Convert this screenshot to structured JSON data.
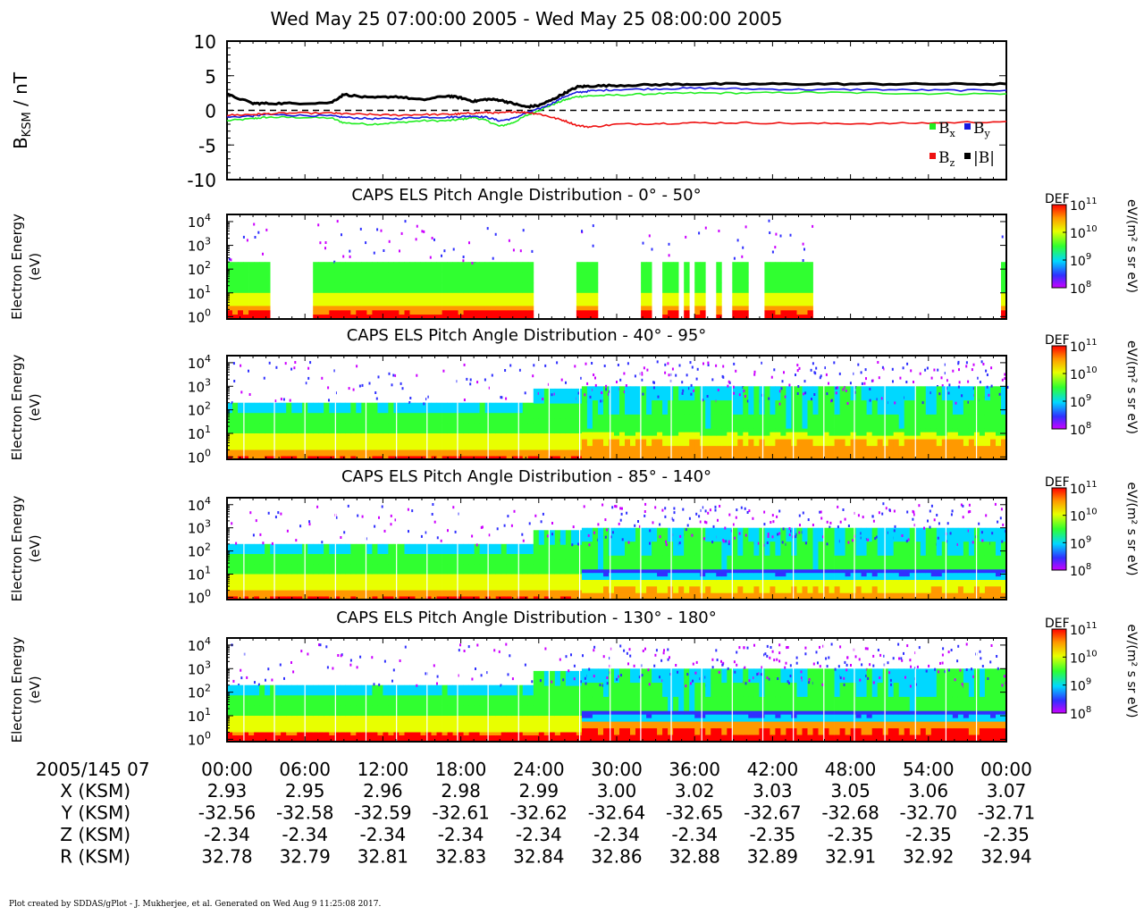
{
  "title": "Wed May 25 07:00:00 2005 - Wed May 25 08:00:00 2005",
  "footer": "Plot created by SDDAS/gPlot - J. Mukherjee, et al.  Generated on Wed Aug 9 11:25:08 2017.",
  "colors": {
    "bx": "#22ee22",
    "by": "#1818e0",
    "bz": "#ee1111",
    "btot": "#000000"
  },
  "chart_data": [
    {
      "type": "line",
      "panel": "magnetic-field",
      "ylabel_main": "B",
      "ylabel_sub": "KSM",
      "ylabel_unit": " / nT",
      "ylim": [
        -10,
        10
      ],
      "yticks": [
        "10",
        "5",
        "0",
        "-5",
        "-10"
      ],
      "ytick_values": [
        10,
        5,
        0,
        -5,
        -10
      ],
      "x_minutes": [
        0,
        2,
        3,
        5,
        8,
        9,
        11,
        13,
        15,
        17,
        18,
        19,
        20,
        21,
        22,
        23,
        24,
        25,
        26,
        27,
        28,
        30,
        33,
        36,
        40,
        45,
        50,
        55,
        60
      ],
      "series": [
        {
          "name": "B",
          "sub": "x",
          "color": "#22ee22",
          "values": [
            -1.5,
            -1.2,
            -1.0,
            -1.0,
            -1.1,
            -1.8,
            -2.0,
            -1.8,
            -1.5,
            -1.5,
            -1.3,
            -1.0,
            -1.5,
            -2.3,
            -1.8,
            -0.8,
            0.0,
            0.8,
            1.5,
            2.0,
            2.1,
            2.2,
            2.4,
            2.5,
            2.5,
            2.6,
            2.5,
            2.4,
            2.4
          ]
        },
        {
          "name": "B",
          "sub": "y",
          "color": "#1818e0",
          "values": [
            -1.0,
            -0.8,
            -0.6,
            -0.7,
            -0.8,
            -1.0,
            -1.2,
            -1.2,
            -1.0,
            -1.0,
            -0.9,
            -0.8,
            -1.0,
            -1.5,
            -1.2,
            -0.4,
            0.2,
            1.0,
            2.0,
            2.6,
            2.8,
            3.0,
            3.1,
            3.2,
            3.1,
            3.0,
            3.0,
            2.9,
            2.9
          ]
        },
        {
          "name": "B",
          "sub": "z",
          "color": "#ee1111",
          "values": [
            -0.7,
            -0.6,
            -0.5,
            -0.4,
            -0.4,
            -0.5,
            -0.6,
            -0.7,
            -0.6,
            -0.6,
            -0.5,
            -0.4,
            -0.3,
            -0.4,
            -0.2,
            -0.3,
            -0.5,
            -1.0,
            -1.5,
            -2.2,
            -2.4,
            -2.0,
            -1.9,
            -1.8,
            -1.8,
            -1.9,
            -1.9,
            -1.8,
            -1.6
          ]
        },
        {
          "name": "|B|",
          "sub": "",
          "color": "#000000",
          "values": [
            2.3,
            1.0,
            1.0,
            1.0,
            1.1,
            2.3,
            1.8,
            2.0,
            1.5,
            2.1,
            1.8,
            1.3,
            1.6,
            1.5,
            1.0,
            0.5,
            0.7,
            1.5,
            2.5,
            3.4,
            3.5,
            3.6,
            3.7,
            3.8,
            3.8,
            3.8,
            3.8,
            3.8,
            3.8
          ]
        }
      ]
    },
    {
      "type": "heatmap",
      "panel": "pad-0-50",
      "title": "CAPS ELS Pitch Angle Distribution - 0° - 50°",
      "ylabel": [
        "Electron Energy",
        "(eV)"
      ],
      "ylim_log10": [
        -0.1,
        4.3
      ],
      "yticks": [
        {
          "base": "10",
          "exp": "4",
          "v": 4
        },
        {
          "base": "10",
          "exp": "3",
          "v": 3
        },
        {
          "base": "10",
          "exp": "2",
          "v": 2
        },
        {
          "base": "10",
          "exp": "1",
          "v": 1
        },
        {
          "base": "10",
          "exp": "0",
          "v": 0
        }
      ],
      "data_intervals_min": [
        [
          0,
          3
        ],
        [
          6.5,
          23.3
        ],
        [
          26.5,
          27.5
        ],
        [
          27.7,
          28.3
        ],
        [
          31.5,
          32.4
        ],
        [
          33.5,
          34.5
        ],
        [
          34.8,
          35.5
        ],
        [
          36,
          36.5
        ],
        [
          37.5,
          37.8
        ],
        [
          38.5,
          40
        ],
        [
          41,
          45
        ],
        [
          59.2,
          60
        ]
      ],
      "gaps_min": [
        [
          3,
          6.5
        ],
        [
          23.3,
          26.5
        ]
      ],
      "bands": [
        {
          "top": 2.3,
          "bot": 1.0,
          "level": 0.35
        },
        {
          "top": 1.0,
          "bot": 0.45,
          "level": 0.55
        },
        {
          "top": 0.45,
          "bot": -0.1,
          "level": 0.8
        }
      ],
      "colorbar": {
        "label": "DEF",
        "unit": "eV/(m² s sr eV)",
        "ticks": [
          {
            "exp": "11",
            "v": 11
          },
          {
            "exp": "10",
            "v": 10
          },
          {
            "exp": "9",
            "v": 9
          },
          {
            "exp": "8",
            "v": 8
          }
        ]
      }
    },
    {
      "type": "heatmap",
      "panel": "pad-40-95",
      "title": "CAPS ELS Pitch Angle Distribution - 40° - 95°",
      "ylabel": [
        "Electron Energy",
        "(eV)"
      ],
      "ylim_log10": [
        -0.1,
        4.3
      ],
      "yticks": [
        {
          "base": "10",
          "exp": "4",
          "v": 4
        },
        {
          "base": "10",
          "exp": "3",
          "v": 3
        },
        {
          "base": "10",
          "exp": "2",
          "v": 2
        },
        {
          "base": "10",
          "exp": "1",
          "v": 1
        },
        {
          "base": "10",
          "exp": "0",
          "v": 0
        }
      ],
      "data_intervals_min": [
        [
          0,
          60
        ]
      ],
      "gaps_min": [],
      "bands": [
        {
          "top": 2.3,
          "bot": 1.0,
          "level": 0.3
        },
        {
          "top": 1.0,
          "bot": 0.3,
          "level": 0.55
        },
        {
          "top": 0.3,
          "bot": -0.1,
          "level": 0.75
        }
      ],
      "colorbar": {
        "label": "DEF",
        "unit": "eV/(m² s sr eV)",
        "ticks": [
          {
            "exp": "11",
            "v": 11
          },
          {
            "exp": "10",
            "v": 10
          },
          {
            "exp": "9",
            "v": 9
          },
          {
            "exp": "8",
            "v": 8
          }
        ]
      }
    },
    {
      "type": "heatmap",
      "panel": "pad-85-140",
      "title": "CAPS ELS Pitch Angle Distribution - 85° - 140°",
      "ylabel": [
        "Electron Energy",
        "(eV)"
      ],
      "ylim_log10": [
        -0.1,
        4.3
      ],
      "yticks": [
        {
          "base": "10",
          "exp": "4",
          "v": 4
        },
        {
          "base": "10",
          "exp": "3",
          "v": 3
        },
        {
          "base": "10",
          "exp": "2",
          "v": 2
        },
        {
          "base": "10",
          "exp": "1",
          "v": 1
        },
        {
          "base": "10",
          "exp": "0",
          "v": 0
        }
      ],
      "data_intervals_min": [
        [
          0,
          60
        ]
      ],
      "gaps_min": [],
      "bands": [
        {
          "top": 2.3,
          "bot": 1.0,
          "level": 0.3
        },
        {
          "top": 1.0,
          "bot": 0.3,
          "level": 0.55
        },
        {
          "top": 0.3,
          "bot": -0.1,
          "level": 0.75
        }
      ],
      "colorbar": {
        "label": "DEF",
        "unit": "eV/(m² s sr eV)",
        "ticks": [
          {
            "exp": "11",
            "v": 11
          },
          {
            "exp": "10",
            "v": 10
          },
          {
            "exp": "9",
            "v": 9
          },
          {
            "exp": "8",
            "v": 8
          }
        ]
      }
    },
    {
      "type": "heatmap",
      "panel": "pad-130-180",
      "title": "CAPS ELS Pitch Angle Distribution - 130° - 180°",
      "ylabel": [
        "Electron Energy",
        "(eV)"
      ],
      "ylim_log10": [
        -0.1,
        4.3
      ],
      "yticks": [
        {
          "base": "10",
          "exp": "4",
          "v": 4
        },
        {
          "base": "10",
          "exp": "3",
          "v": 3
        },
        {
          "base": "10",
          "exp": "2",
          "v": 2
        },
        {
          "base": "10",
          "exp": "1",
          "v": 1
        },
        {
          "base": "10",
          "exp": "0",
          "v": 0
        }
      ],
      "data_intervals_min": [
        [
          0,
          60
        ]
      ],
      "gaps_min": [],
      "bands": [
        {
          "top": 2.3,
          "bot": 1.0,
          "level": 0.3
        },
        {
          "top": 1.0,
          "bot": 0.3,
          "level": 0.55
        },
        {
          "top": 0.3,
          "bot": -0.1,
          "level": 0.85
        }
      ],
      "colorbar": {
        "label": "DEF",
        "unit": "eV/(m² s sr eV)",
        "ticks": [
          {
            "exp": "11",
            "v": 11
          },
          {
            "exp": "10",
            "v": 10
          },
          {
            "exp": "9",
            "v": 9
          },
          {
            "exp": "8",
            "v": 8
          }
        ]
      }
    }
  ],
  "x_axis": {
    "date_label": "2005/145 07",
    "ticks": [
      "00:00",
      "06:00",
      "12:00",
      "18:00",
      "24:00",
      "30:00",
      "36:00",
      "42:00",
      "48:00",
      "54:00",
      "00:00"
    ],
    "rows": [
      {
        "label": "X (KSM)",
        "values": [
          "2.93",
          "2.95",
          "2.96",
          "2.98",
          "2.99",
          "3.00",
          "3.02",
          "3.03",
          "3.05",
          "3.06",
          "3.07"
        ]
      },
      {
        "label": "Y (KSM)",
        "values": [
          "-32.56",
          "-32.58",
          "-32.59",
          "-32.61",
          "-32.62",
          "-32.64",
          "-32.65",
          "-32.67",
          "-32.68",
          "-32.70",
          "-32.71"
        ]
      },
      {
        "label": "Z (KSM)",
        "values": [
          "-2.34",
          "-2.34",
          "-2.34",
          "-2.34",
          "-2.34",
          "-2.34",
          "-2.34",
          "-2.35",
          "-2.35",
          "-2.35",
          "-2.35"
        ]
      },
      {
        "label": "R (KSM)",
        "values": [
          "32.78",
          "32.79",
          "32.81",
          "32.83",
          "32.84",
          "32.86",
          "32.88",
          "32.89",
          "32.91",
          "32.92",
          "32.94"
        ]
      }
    ]
  }
}
